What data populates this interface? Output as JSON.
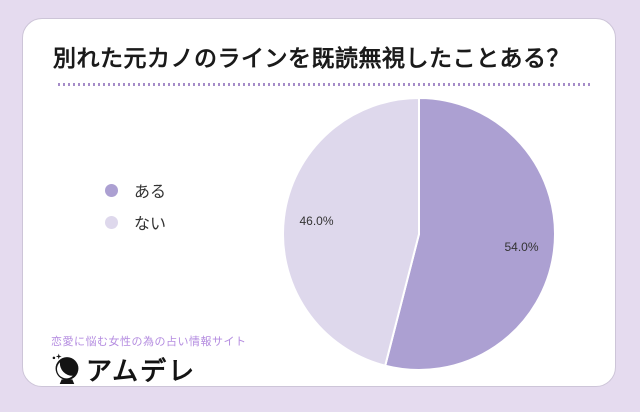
{
  "page": {
    "tagline": "恋愛に悩む女性の為の占い情報サイト",
    "brand": "アムデレ"
  },
  "chart_data": {
    "type": "pie",
    "title": "別れた元カノのラインを既読無視したことある？",
    "labels": [
      "ある",
      "ない"
    ],
    "values": [
      54.0,
      46.0
    ],
    "value_labels": [
      "54.0%",
      "46.0%"
    ],
    "colors": [
      "#aca0d2",
      "#ded8ec"
    ],
    "start_angle_deg": 0,
    "direction": "clockwise",
    "slice_border_color": "#ffffff",
    "label_color": "#333333",
    "legend_position": "left"
  },
  "colors": {
    "background": "#e5dbef",
    "card_background": "#ffffff",
    "card_border": "#cdc5d8",
    "title_text": "#1a1a1a",
    "dotted_underline": "#a58cc8",
    "tagline_text": "#b48ce0",
    "brand_text": "#141414"
  }
}
